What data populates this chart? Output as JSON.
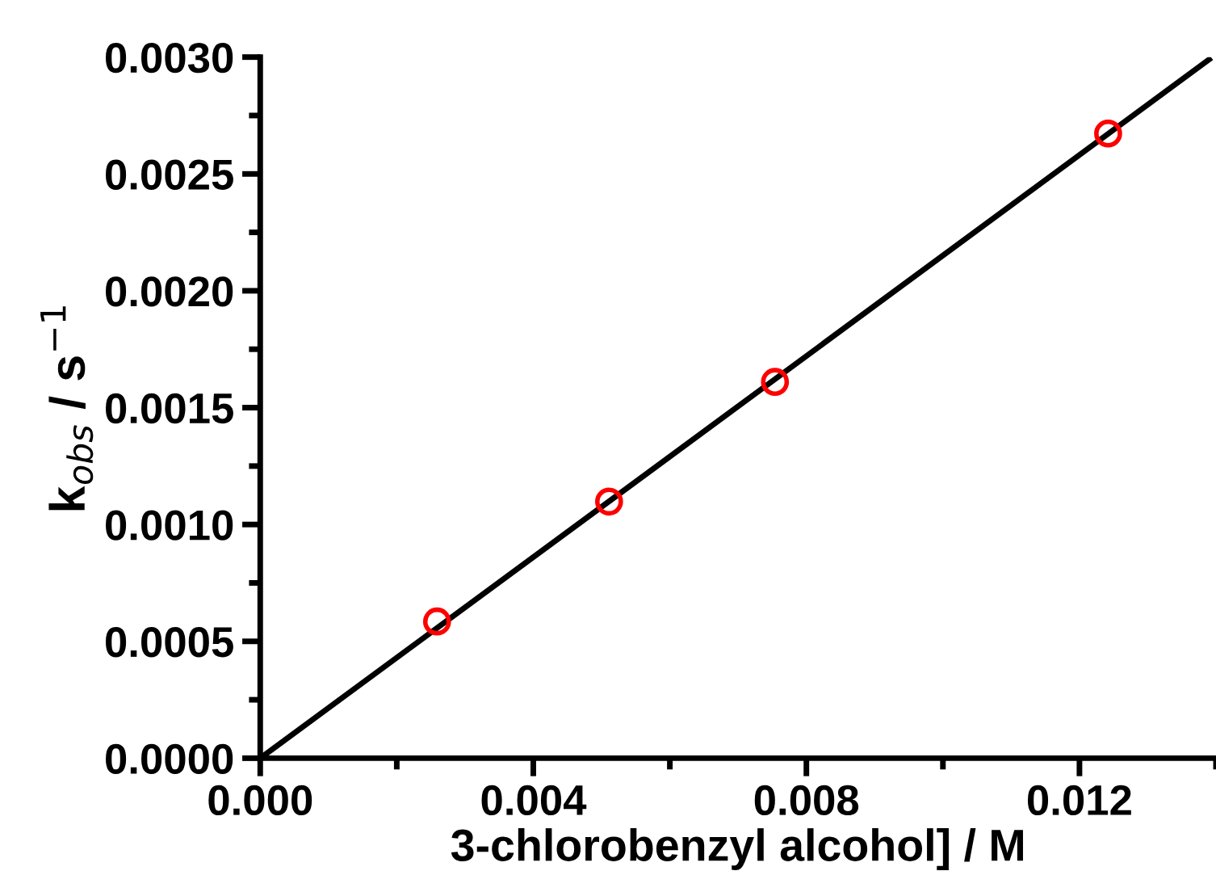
{
  "chart_data": {
    "type": "scatter",
    "xlabel": "3-chlorobenzyl alcohol] / M",
    "ylabel": "k$_{obs}$ / s$^{−1}$",
    "xlim": [
      0,
      0.014
    ],
    "ylim": [
      0,
      0.003
    ],
    "xticks": [
      {
        "value": 0,
        "label": "0.000"
      },
      0.004,
      0.008,
      0.012
    ],
    "yticks": [
      {
        "value": 0,
        "label": "0.0000"
      },
      0.0005,
      {
        "value": 0.001,
        "label": "0.0010"
      },
      0.0015,
      {
        "value": 0.002,
        "label": "0.0020"
      },
      0.0025,
      {
        "value": 0.003,
        "label": "0.0030"
      }
    ],
    "grid": false,
    "series": [
      {
        "marker": "circle",
        "color": "#ff0000",
        "x": [
          0.00259,
          0.00511,
          0.00754,
          0.01242
        ],
        "values": [
          0.000585,
          0.001098,
          0.00161,
          0.002673
        ]
      },
      {
        "type": "line",
        "color": "#000000",
        "x": [
          0,
          0.0139
        ],
        "values": [
          0,
          0.00299
        ]
      }
    ]
  }
}
